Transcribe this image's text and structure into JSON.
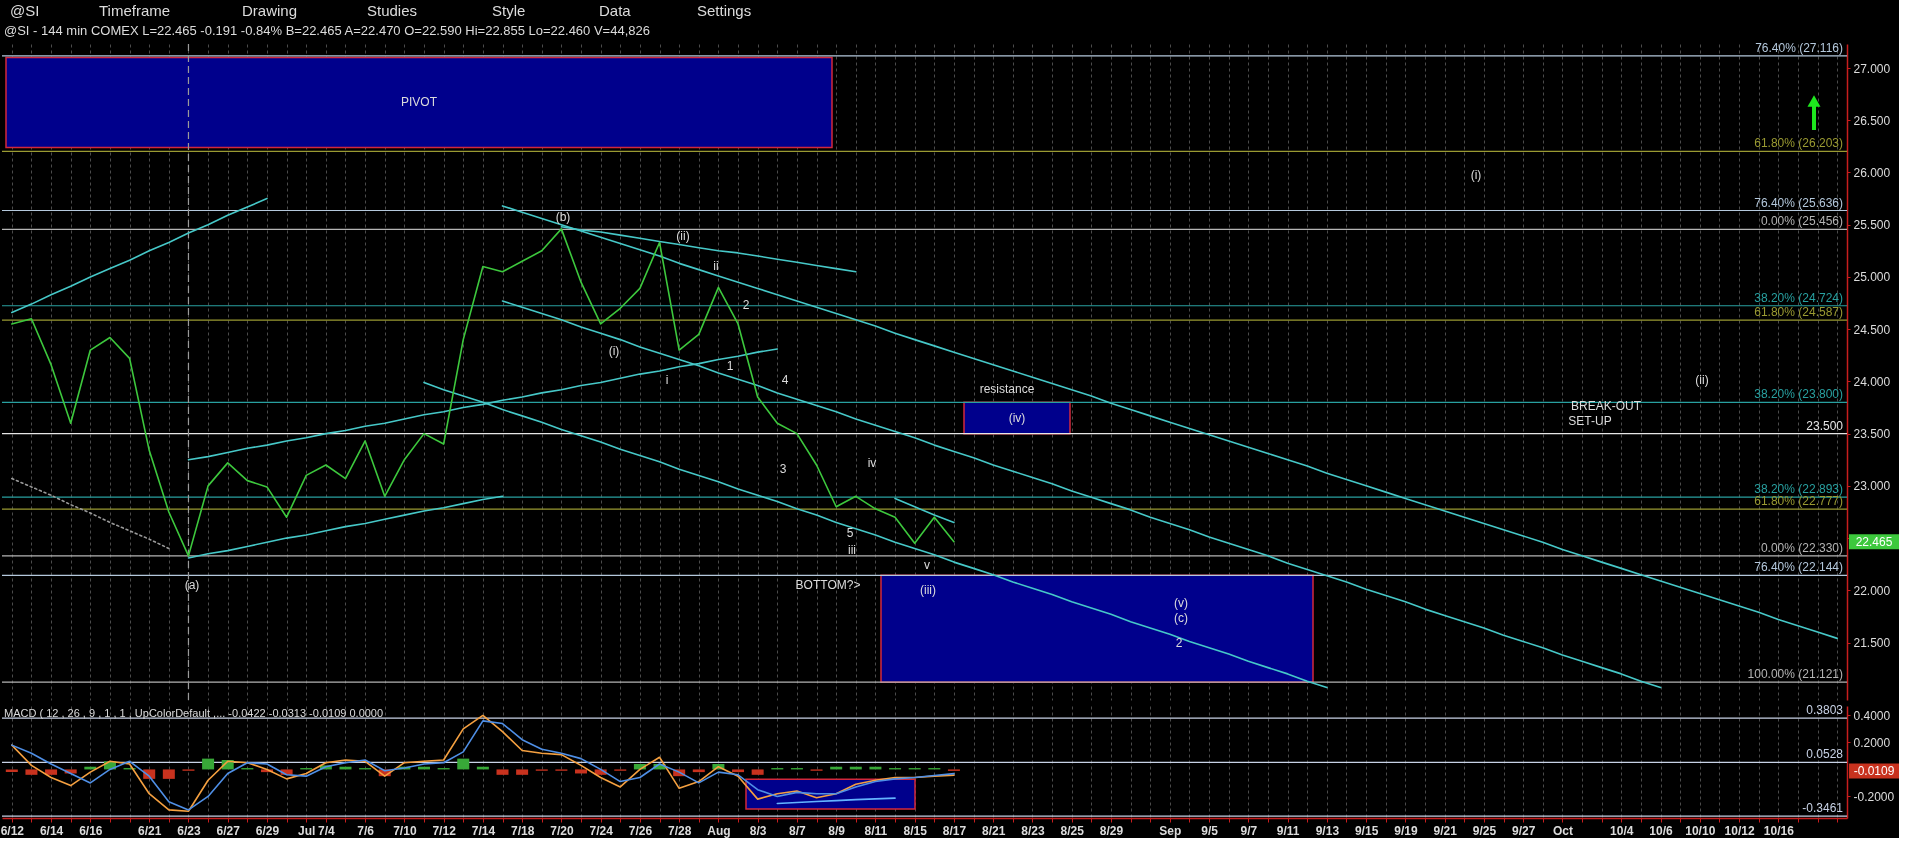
{
  "chart_data": [
    {
      "type": "line",
      "title": "@SI - 144 min COMEX L=22.465 -0.191 -0.84% B=22.465 A=22.470 O=22.590 Hi=22.855 Lo=22.460 V=44,826",
      "categories": [
        "6/12",
        null,
        "6/14",
        null,
        "6/16",
        null,
        null,
        "6/21",
        null,
        "6/23",
        null,
        "6/27",
        null,
        "6/29",
        null,
        "Jul",
        "7/4",
        null,
        "7/6",
        null,
        "7/10",
        null,
        "7/12",
        null,
        "7/14",
        null,
        "7/18",
        null,
        "7/20",
        null,
        "7/24",
        null,
        "7/26",
        null,
        "7/28",
        null,
        "Aug",
        null,
        "8/3",
        null,
        "8/7",
        null,
        "8/9",
        null,
        "8/11",
        null,
        "8/15",
        null,
        "8/17",
        null,
        "8/21",
        null,
        "8/23",
        null,
        "8/25",
        null,
        "8/29",
        null,
        null,
        "Sep",
        null,
        "9/5",
        null,
        "9/7",
        null,
        "9/11",
        null,
        "9/13",
        null,
        "9/15",
        null,
        "9/19",
        null,
        "9/21",
        null,
        "9/25",
        null,
        "9/27",
        null,
        "Oct",
        null,
        null,
        "10/4",
        null,
        "10/6",
        null,
        "10/10",
        null,
        "10/12",
        null,
        "10/16",
        null,
        null,
        null
      ],
      "ylim": [
        20.95,
        27.23
      ],
      "yticks": [
        {
          "value": 21.5,
          "label": "21.500"
        },
        {
          "value": 22,
          "label": "22.000"
        },
        {
          "value": 22.5,
          "label": null
        },
        {
          "value": 23,
          "label": "23.000"
        },
        {
          "value": 23.5,
          "label": "23.500"
        },
        {
          "value": 24,
          "label": "24.000"
        },
        {
          "value": 24.5,
          "label": "24.500"
        },
        {
          "value": 25,
          "label": "25.000"
        },
        {
          "value": 25.5,
          "label": "25.500"
        },
        {
          "value": 26,
          "label": "26.000"
        },
        {
          "value": 26.5,
          "label": "26.500"
        },
        {
          "value": 27,
          "label": "27.000"
        }
      ],
      "tick_labels": "y",
      "grid": "x",
      "bands": [
        {
          "axis": "y",
          "from": 26.24,
          "to": 27.1,
          "label": "PIVOT",
          "color": "#00008c"
        },
        {
          "axis": "y",
          "from": 23.5,
          "to": 23.8,
          "label": "(iv)",
          "color": "#00008c"
        },
        {
          "axis": "y",
          "from": 21.121,
          "to": 22.144,
          "color": "#00008c"
        }
      ],
      "series": [
        {
          "type": "line",
          "color": "#9a9a9a",
          "line_style": "dotted",
          "values": [
            23.07,
            22.99,
            22.91,
            22.82,
            22.74,
            22.65,
            22.57,
            22.49,
            22.4,
            null,
            null,
            null,
            null,
            null,
            null,
            null,
            null,
            null,
            null,
            null,
            null,
            null,
            null,
            null,
            null,
            null,
            null,
            null,
            null,
            null,
            null,
            null,
            null,
            null,
            null,
            null,
            null,
            null,
            null,
            null,
            null,
            null,
            null,
            null,
            null,
            null,
            null,
            null,
            null,
            null,
            null,
            null,
            null,
            null,
            null,
            null,
            null,
            null,
            null,
            null,
            null,
            null,
            null,
            null,
            null,
            null,
            null,
            null,
            null,
            null,
            null,
            null,
            null,
            null,
            null,
            null,
            null,
            null,
            null,
            null,
            null,
            null,
            null,
            null,
            null,
            null,
            null,
            null,
            null,
            null,
            null,
            null,
            null,
            null
          ]
        },
        {
          "type": "line",
          "color": "#46c8c8",
          "values": [
            24.66,
            24.74,
            24.83,
            24.91,
            25.0,
            25.08,
            25.16,
            25.25,
            25.33,
            25.42,
            25.5,
            25.59,
            25.67,
            25.75,
            null,
            null,
            null,
            null,
            null,
            null,
            null,
            null,
            null,
            null,
            null,
            null,
            null,
            null,
            null,
            null,
            null,
            null,
            null,
            null,
            null,
            null,
            null,
            null,
            null,
            null,
            null,
            null,
            null,
            null,
            null,
            null,
            null,
            null,
            null,
            null,
            null,
            null,
            null,
            null,
            null,
            null,
            null,
            null,
            null,
            null,
            null,
            null,
            null,
            null,
            null,
            null,
            null,
            null,
            null,
            null,
            null,
            null,
            null,
            null,
            null,
            null,
            null,
            null,
            null,
            null,
            null,
            null,
            null,
            null,
            null,
            null,
            null,
            null,
            null,
            null,
            null,
            null,
            null,
            null
          ]
        },
        {
          "type": "line",
          "color": "#46c8c8",
          "values": [
            null,
            null,
            null,
            null,
            null,
            null,
            null,
            null,
            null,
            22.31,
            22.35,
            22.38,
            22.42,
            22.46,
            22.5,
            22.53,
            22.57,
            22.61,
            22.64,
            22.68,
            22.72,
            22.76,
            22.79,
            22.83,
            22.87,
            22.9,
            null,
            null,
            null,
            null,
            null,
            null,
            null,
            null,
            null,
            null,
            null,
            null,
            null,
            null,
            null,
            null,
            null,
            null,
            null,
            null,
            null,
            null,
            null,
            null,
            null,
            null,
            null,
            null,
            null,
            null,
            null,
            null,
            null,
            null,
            null,
            null,
            null,
            null,
            null,
            null,
            null,
            null,
            null,
            null,
            null,
            null,
            null,
            null,
            null,
            null,
            null,
            null,
            null,
            null,
            null,
            null,
            null,
            null,
            null,
            null,
            null,
            null,
            null,
            null,
            null,
            null,
            null,
            null
          ]
        },
        {
          "type": "line",
          "color": "#46c8c8",
          "values": [
            null,
            null,
            null,
            null,
            null,
            null,
            null,
            null,
            null,
            23.25,
            23.28,
            23.32,
            23.36,
            23.39,
            23.43,
            23.46,
            23.5,
            23.53,
            23.57,
            23.6,
            23.64,
            23.68,
            23.71,
            23.75,
            23.78,
            23.82,
            23.85,
            23.89,
            23.92,
            23.96,
            23.99,
            24.03,
            24.07,
            24.1,
            24.14,
            24.17,
            24.21,
            24.24,
            24.28,
            24.31,
            null,
            null,
            null,
            null,
            null,
            null,
            null,
            null,
            null,
            null,
            null,
            null,
            null,
            null,
            null,
            null,
            null,
            null,
            null,
            null,
            null,
            null,
            null,
            null,
            null,
            null,
            null,
            null,
            null,
            null,
            null,
            null,
            null,
            null,
            null,
            null,
            null,
            null,
            null,
            null,
            null,
            null,
            null,
            null,
            null,
            null,
            null,
            null,
            null,
            null,
            null,
            null,
            null,
            null
          ]
        },
        {
          "type": "line",
          "color": "#46c8c8",
          "values": [
            null,
            null,
            null,
            null,
            null,
            null,
            null,
            null,
            null,
            null,
            null,
            null,
            null,
            null,
            null,
            null,
            null,
            null,
            null,
            null,
            null,
            23.99,
            23.92,
            23.86,
            23.8,
            23.73,
            23.67,
            23.61,
            23.54,
            23.48,
            23.42,
            23.35,
            23.29,
            23.23,
            23.16,
            23.1,
            23.04,
            22.97,
            22.91,
            22.85,
            22.78,
            22.72,
            22.65,
            22.59,
            22.53,
            22.46,
            22.4,
            22.34,
            22.27,
            22.21,
            22.15,
            22.08,
            22.02,
            21.96,
            21.89,
            21.83,
            21.77,
            21.7,
            21.64,
            21.58,
            21.51,
            21.45,
            21.39,
            21.32,
            21.26,
            21.2,
            21.13,
            21.07,
            null,
            null,
            null,
            null,
            null,
            null,
            null,
            null,
            null,
            null,
            null,
            null,
            null,
            null,
            null,
            null,
            null,
            null,
            null,
            null,
            null,
            null,
            null,
            null,
            null,
            null
          ]
        },
        {
          "type": "line",
          "color": "#46c8c8",
          "values": [
            null,
            null,
            null,
            null,
            null,
            null,
            null,
            null,
            null,
            null,
            null,
            null,
            null,
            null,
            null,
            null,
            null,
            null,
            null,
            null,
            null,
            null,
            null,
            null,
            null,
            24.77,
            24.71,
            24.65,
            24.59,
            24.52,
            24.46,
            24.4,
            24.33,
            24.27,
            24.21,
            24.15,
            24.08,
            24.02,
            23.96,
            23.89,
            23.83,
            23.77,
            23.71,
            23.64,
            23.58,
            23.52,
            23.46,
            23.39,
            23.33,
            23.27,
            23.2,
            23.14,
            23.08,
            23.02,
            22.95,
            22.89,
            22.83,
            22.77,
            22.7,
            22.64,
            22.58,
            22.51,
            22.45,
            22.39,
            22.33,
            22.26,
            22.2,
            22.14,
            22.08,
            22.01,
            21.95,
            21.89,
            21.82,
            21.76,
            21.7,
            21.64,
            21.57,
            21.51,
            21.45,
            21.38,
            21.32,
            21.26,
            21.2,
            21.13,
            21.07,
            null,
            null,
            null,
            null,
            null,
            null,
            null,
            null,
            null
          ]
        },
        {
          "type": "line",
          "color": "#46c8c8",
          "values": [
            null,
            null,
            null,
            null,
            null,
            null,
            null,
            null,
            null,
            null,
            null,
            null,
            null,
            null,
            null,
            null,
            null,
            null,
            null,
            null,
            null,
            null,
            null,
            null,
            null,
            25.68,
            25.62,
            25.56,
            25.5,
            25.44,
            25.38,
            25.32,
            25.26,
            25.2,
            25.13,
            25.07,
            25.01,
            24.95,
            24.89,
            24.83,
            24.77,
            24.71,
            24.65,
            24.59,
            24.53,
            24.46,
            24.4,
            24.34,
            24.28,
            24.22,
            24.16,
            24.1,
            24.04,
            23.98,
            23.92,
            23.86,
            23.79,
            23.73,
            23.67,
            23.61,
            23.55,
            23.49,
            23.43,
            23.37,
            23.31,
            23.25,
            23.19,
            23.12,
            23.06,
            23.0,
            22.94,
            22.88,
            22.82,
            22.76,
            22.7,
            22.64,
            22.58,
            22.52,
            22.46,
            22.39,
            22.33,
            22.27,
            22.21,
            22.15,
            22.09,
            22.03,
            21.97,
            21.91,
            21.85,
            21.79,
            21.72,
            21.66,
            21.6,
            21.54
          ]
        },
        {
          "type": "line",
          "color": "#46c8c8",
          "values": [
            null,
            null,
            null,
            null,
            null,
            null,
            null,
            null,
            null,
            null,
            null,
            null,
            null,
            null,
            null,
            null,
            null,
            null,
            null,
            null,
            null,
            null,
            null,
            null,
            null,
            null,
            null,
            null,
            25.48,
            25.45,
            25.43,
            25.4,
            25.37,
            25.34,
            25.31,
            25.28,
            25.25,
            25.23,
            25.2,
            25.17,
            25.14,
            25.11,
            25.08,
            25.05,
            null,
            null,
            null,
            null,
            null,
            null,
            null,
            null,
            null,
            null,
            null,
            null,
            null,
            null,
            null,
            null,
            null,
            null,
            null,
            null,
            null,
            null,
            null,
            null,
            null,
            null,
            null,
            null,
            null,
            null,
            null,
            null,
            null,
            null,
            null,
            null,
            null,
            null,
            null,
            null,
            null,
            null,
            null,
            null,
            null,
            null,
            null,
            null,
            null,
            null
          ]
        },
        {
          "type": "line",
          "color": "#46c8c8",
          "values": [
            null,
            null,
            null,
            null,
            null,
            null,
            null,
            null,
            null,
            null,
            null,
            null,
            null,
            null,
            null,
            null,
            null,
            null,
            null,
            null,
            null,
            null,
            null,
            null,
            null,
            null,
            null,
            null,
            null,
            null,
            null,
            null,
            null,
            null,
            null,
            null,
            null,
            null,
            null,
            null,
            null,
            null,
            null,
            null,
            null,
            22.88,
            22.8,
            22.72,
            22.65,
            null,
            null,
            null,
            null,
            null,
            null,
            null,
            null,
            null,
            null,
            null,
            null,
            null,
            null,
            null,
            null,
            null,
            null,
            null,
            null,
            null,
            null,
            null,
            null,
            null,
            null,
            null,
            null,
            null,
            null,
            null,
            null,
            null,
            null,
            null,
            null,
            null,
            null,
            null,
            null,
            null,
            null,
            null,
            null,
            null
          ]
        },
        {
          "color": "#3dc83d",
          "values": [
            24.55,
            24.6,
            24.16,
            23.6,
            24.3,
            24.42,
            24.22,
            23.34,
            22.75,
            22.33,
            23.0,
            23.22,
            23.05,
            22.99,
            22.7,
            23.1,
            23.2,
            23.07,
            23.43,
            22.9,
            23.25,
            23.5,
            23.4,
            24.4,
            25.1,
            25.05,
            25.15,
            25.25,
            25.46,
            24.95,
            24.55,
            24.7,
            24.89,
            25.33,
            24.3,
            24.45,
            24.9,
            24.55,
            23.85,
            23.6,
            23.5,
            23.2,
            22.8,
            22.9,
            22.78,
            22.7,
            22.45,
            22.7,
            22.465,
            null,
            null,
            null,
            null,
            null,
            null,
            null,
            null,
            null,
            null,
            null,
            null,
            null,
            null,
            null,
            null,
            null,
            null,
            null,
            null,
            null,
            null,
            null,
            null,
            null,
            null,
            null,
            null,
            null,
            null,
            null,
            null,
            null,
            null,
            null,
            null,
            null,
            null,
            null,
            null,
            null,
            null,
            null,
            null,
            null
          ]
        }
      ],
      "ref_lines": [
        {
          "axis": "y",
          "value": 27.116,
          "label": "76.40% (27.116)",
          "color": "#b4c8dc"
        },
        {
          "axis": "y",
          "value": 26.203,
          "label": "61.80% (26.203)",
          "color": "#9a9a32"
        },
        {
          "axis": "y",
          "value": 25.636,
          "label": "76.40% (25.636)",
          "color": "#b4c8dc"
        },
        {
          "axis": "y",
          "value": 25.456,
          "label": "0.00% (25.456)",
          "color": "#b4b4b4"
        },
        {
          "axis": "y",
          "value": 24.724,
          "label": "38.20% (24.724)",
          "color": "#28a0a0"
        },
        {
          "axis": "y",
          "value": 24.587,
          "label": "61.80% (24.587)",
          "color": "#9a9a32"
        },
        {
          "axis": "y",
          "value": 23.8,
          "label": "38.20% (23.800)",
          "color": "#28a0a0"
        },
        {
          "axis": "y",
          "value": 23.5,
          "label": "23.500",
          "color": "#e6e6e6"
        },
        {
          "axis": "y",
          "value": 22.893,
          "label": "38.20% (22.893)",
          "color": "#28a0a0"
        },
        {
          "axis": "y",
          "value": 22.777,
          "label": "61.80% (22.777)",
          "color": "#9a9a32"
        },
        {
          "axis": "y",
          "value": 22.33,
          "label": "0.00% (22.330)",
          "color": "#b4b4b4"
        },
        {
          "axis": "y",
          "value": 22.144,
          "label": "76.40% (22.144)",
          "color": "#b4c8dc"
        },
        {
          "axis": "y",
          "value": 21.121,
          "label": "100.00% (21.121)",
          "color": "#b4b4b4"
        },
        {
          "axis": "x",
          "value": "6/23",
          "color": "#9a9a9a",
          "line_style": "dashed"
        }
      ],
      "annotations": [
        "@SI",
        "Timeframe",
        "Drawing",
        "Studies",
        "Style",
        "Data",
        "Settings",
        "22.465",
        "(a)",
        "(b)",
        "(i)",
        "(ii)",
        "i",
        "ii",
        "1",
        "2",
        "3",
        "4",
        "5",
        "iii",
        "iv",
        "BOTTOM?>",
        "v",
        "(iii)",
        "resistance",
        "(v)",
        "(c)",
        "2",
        "(i)",
        "(ii)",
        "BREAK-OUT",
        "SET-UP"
      ]
    },
    {
      "type": "line",
      "title": "MACD ( 12 , 26 , 9 , 1 , 1 , UpColorDefault ,... -0.0422 -0.0313 -0.0109 0.0000",
      "categories": [
        "6/12",
        null,
        "6/14",
        null,
        "6/16",
        null,
        null,
        "6/21",
        null,
        "6/23",
        null,
        "6/27",
        null,
        "6/29",
        null,
        "Jul",
        "7/4",
        null,
        "7/6",
        null,
        "7/10",
        null,
        "7/12",
        null,
        "7/14",
        null,
        "7/18",
        null,
        "7/20",
        null,
        "7/24",
        null,
        "7/26",
        null,
        "7/28",
        null,
        "Aug",
        null,
        "8/3",
        null,
        "8/7",
        null,
        "8/9",
        null,
        "8/11",
        null,
        "8/15",
        null,
        "8/17",
        null,
        "8/21",
        null,
        "8/23",
        null,
        "8/25",
        null,
        "8/29",
        null,
        null,
        "Sep",
        null,
        "9/5",
        null,
        "9/7",
        null,
        "9/11",
        null,
        "9/13",
        null,
        "9/15",
        null,
        "9/19",
        null,
        "9/21",
        null,
        "9/25",
        null,
        "9/27",
        null,
        "Oct",
        null,
        null,
        "10/4",
        null,
        "10/6",
        null,
        "10/10",
        null,
        "10/12",
        null,
        "10/16",
        null,
        null,
        null
      ],
      "ylim": [
        -0.36,
        0.47
      ],
      "yticks": [
        {
          "value": -0.2,
          "label": "-0.2000"
        },
        {
          "value": 0.2,
          "label": "0.2000"
        },
        {
          "value": 0.4,
          "label": "0.4000"
        }
      ],
      "grid": "x",
      "bands": [
        {
          "axis": "y",
          "from": -0.294,
          "to": -0.073,
          "color": "#00008c"
        }
      ],
      "series": [
        {
          "type": "bar",
          "values": [
            -0.02,
            -0.04,
            -0.04,
            -0.03,
            0.02,
            0.06,
            0.01,
            -0.07,
            -0.07,
            -0.01,
            0.08,
            0.07,
            0.01,
            -0.02,
            -0.04,
            0.01,
            0.03,
            0.02,
            0.01,
            -0.05,
            0.02,
            0.02,
            0.01,
            0.08,
            0.02,
            -0.04,
            -0.04,
            -0.01,
            -0.01,
            -0.03,
            -0.04,
            -0.01,
            0.04,
            0.04,
            -0.05,
            -0.02,
            0.04,
            -0.02,
            -0.04,
            0.01,
            0.01,
            -0.01,
            0.02,
            0.02,
            0.02,
            0.01,
            0.01,
            0.01,
            -0.0109,
            null,
            null,
            null,
            null,
            null,
            null,
            null,
            null,
            null,
            null,
            null,
            null,
            null,
            null,
            null,
            null,
            null,
            null,
            null,
            null,
            null,
            null,
            null,
            null,
            null,
            null,
            null,
            null,
            null,
            null,
            null,
            null,
            null,
            null,
            null,
            null,
            null,
            null,
            null,
            null,
            null,
            null,
            null,
            null,
            null
          ],
          "colors": [
            "#c8321e",
            "#c8321e",
            "#c8321e",
            "#c8321e",
            "#38a838",
            "#38a838",
            "#38a838",
            "#c8321e",
            "#c8321e",
            "#c8321e",
            "#38a838",
            "#38a838",
            "#38a838",
            "#c8321e",
            "#c8321e",
            "#38a838",
            "#38a838",
            "#38a838",
            "#38a838",
            "#c8321e",
            "#38a838",
            "#38a838",
            "#38a838",
            "#38a838",
            "#38a838",
            "#c8321e",
            "#c8321e",
            "#c8321e",
            "#c8321e",
            "#c8321e",
            "#c8321e",
            "#c8321e",
            "#38a838",
            "#38a838",
            "#c8321e",
            "#c8321e",
            "#38a838",
            "#c8321e",
            "#c8321e",
            "#38a838",
            "#38a838",
            "#c8321e",
            "#38a838",
            "#38a838",
            "#38a838",
            "#38a838",
            "#38a838",
            "#38a838",
            "#c8321e",
            null,
            null,
            null,
            null,
            null,
            null,
            null,
            null,
            null,
            null,
            null,
            null,
            null,
            null,
            null,
            null,
            null,
            null,
            null,
            null,
            null,
            null,
            null,
            null,
            null,
            null,
            null,
            null,
            null,
            null,
            null,
            null,
            null,
            null,
            null,
            null,
            null,
            null,
            null,
            null,
            null,
            null,
            null,
            null,
            null
          ]
        },
        {
          "color": "#f5a040",
          "values": [
            0.18,
            0.03,
            -0.06,
            -0.12,
            -0.02,
            0.06,
            0.04,
            -0.18,
            -0.3,
            -0.31,
            -0.08,
            0.06,
            0.05,
            0.0,
            -0.07,
            -0.03,
            0.05,
            0.07,
            0.06,
            -0.05,
            0.05,
            0.06,
            0.07,
            0.3,
            0.4,
            0.28,
            0.14,
            0.12,
            0.11,
            0.03,
            -0.06,
            -0.13,
            0.0,
            0.09,
            -0.14,
            -0.09,
            0.02,
            -0.05,
            -0.22,
            -0.18,
            -0.16,
            -0.21,
            -0.18,
            -0.11,
            -0.08,
            -0.06,
            -0.06,
            -0.05,
            -0.0422,
            null,
            null,
            null,
            null,
            null,
            null,
            null,
            null,
            null,
            null,
            null,
            null,
            null,
            null,
            null,
            null,
            null,
            null,
            null,
            null,
            null,
            null,
            null,
            null,
            null,
            null,
            null,
            null,
            null,
            null,
            null,
            null,
            null,
            null,
            null,
            null,
            null,
            null,
            null,
            null,
            null,
            null,
            null,
            null,
            null
          ]
        },
        {
          "color": "#4f8fe6",
          "values": [
            0.18,
            0.12,
            0.04,
            -0.03,
            -0.1,
            0.0,
            0.06,
            -0.05,
            -0.24,
            -0.3,
            -0.2,
            -0.03,
            0.05,
            0.04,
            -0.04,
            -0.05,
            0.02,
            0.05,
            0.07,
            -0.01,
            0.01,
            0.04,
            0.05,
            0.13,
            0.36,
            0.34,
            0.22,
            0.15,
            0.12,
            0.08,
            0.0,
            -0.09,
            -0.06,
            0.04,
            -0.02,
            -0.1,
            -0.02,
            -0.04,
            -0.15,
            -0.2,
            -0.17,
            -0.18,
            -0.18,
            -0.13,
            -0.09,
            -0.07,
            -0.06,
            -0.045,
            -0.0313,
            null,
            null,
            null,
            null,
            null,
            null,
            null,
            null,
            null,
            null,
            null,
            null,
            null,
            null,
            null,
            null,
            null,
            null,
            null,
            null,
            null,
            null,
            null,
            null,
            null,
            null,
            null,
            null,
            null,
            null,
            null,
            null,
            null,
            null,
            null,
            null,
            null,
            null,
            null,
            null,
            null,
            null,
            null,
            null,
            null
          ]
        },
        {
          "type": "line",
          "color": "#64b4ff",
          "values": [
            null,
            null,
            null,
            null,
            null,
            null,
            null,
            null,
            null,
            null,
            null,
            null,
            null,
            null,
            null,
            null,
            null,
            null,
            null,
            null,
            null,
            null,
            null,
            null,
            null,
            null,
            null,
            null,
            null,
            null,
            null,
            null,
            null,
            null,
            null,
            null,
            null,
            null,
            null,
            -0.252,
            -0.245,
            -0.238,
            -0.231,
            -0.224,
            -0.218,
            -0.213,
            null,
            null,
            null,
            null,
            null,
            null,
            null,
            null,
            null,
            null,
            null,
            null,
            null,
            null,
            null,
            null,
            null,
            null,
            null,
            null,
            null,
            null,
            null,
            null,
            null,
            null,
            null,
            null,
            null,
            null,
            null,
            null,
            null,
            null,
            null,
            null,
            null,
            null,
            null,
            null,
            null,
            null,
            null,
            null,
            null,
            null,
            null,
            null
          ]
        }
      ],
      "ref_lines": [
        {
          "axis": "y",
          "value": 0.3803,
          "label": "0.3803",
          "color": "#c8d2e6"
        },
        {
          "axis": "y",
          "value": 0.0528,
          "label": "0.0528",
          "color": "#c8d2e6"
        },
        {
          "axis": "y",
          "value": -0.3461,
          "label": "-0.3461",
          "color": "#c8d2e6"
        }
      ],
      "annotations": [
        "-0.0109"
      ]
    }
  ]
}
